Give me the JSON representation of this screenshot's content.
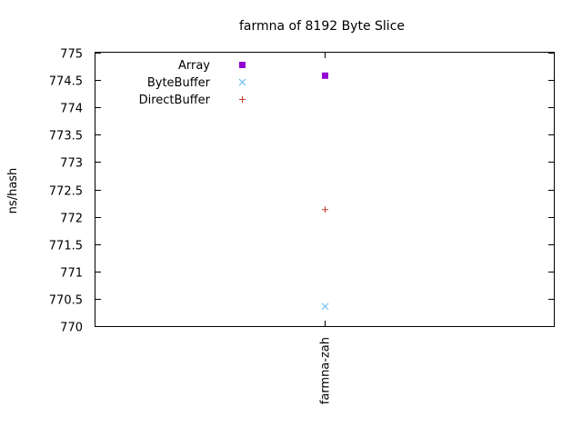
{
  "chart_data": {
    "type": "scatter",
    "title": "farmna of 8192 Byte Slice",
    "xlabel": "",
    "ylabel": "ns/hash",
    "categories": [
      "farmna-zah"
    ],
    "ylim": [
      770,
      775
    ],
    "yticks": [
      770,
      770.5,
      771,
      771.5,
      772,
      772.5,
      773,
      773.5,
      774,
      774.5,
      775
    ],
    "ytick_labels": [
      "770",
      "770.5",
      "771",
      "771.5",
      "772",
      "772.5",
      "773",
      "773.5",
      "774",
      "774.5",
      "775"
    ],
    "legend_position": "top-left",
    "series": [
      {
        "name": "Array",
        "marker": "filled-square",
        "color": "#9400d3",
        "values": [
          774.58
        ]
      },
      {
        "name": "ByteBuffer",
        "marker": "x",
        "color": "#56b4e9",
        "values": [
          770.36
        ]
      },
      {
        "name": "DirectBuffer",
        "marker": "plus",
        "color": "#c0392b",
        "values": [
          772.13
        ]
      }
    ]
  }
}
